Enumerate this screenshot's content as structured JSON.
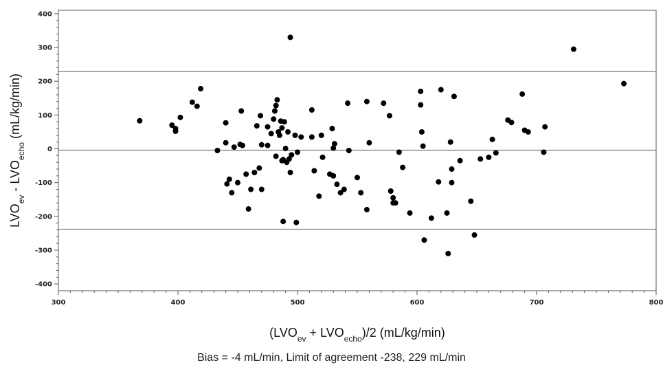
{
  "chart_data": {
    "type": "scatter",
    "title": "",
    "xlabel": {
      "parts": [
        {
          "text": "(LVO",
          "sub": false
        },
        {
          "text": "ev",
          "sub": true
        },
        {
          "text": " + LVO",
          "sub": false
        },
        {
          "text": "echo",
          "sub": true
        },
        {
          "text": ")/2 (mL/kg/min)",
          "sub": false
        }
      ]
    },
    "ylabel": {
      "parts": [
        {
          "text": "LVO",
          "sub": false
        },
        {
          "text": "ev",
          "sub": true
        },
        {
          "text": " - LVO",
          "sub": false
        },
        {
          "text": "echo",
          "sub": true
        },
        {
          "text": " (mL/kg/min)",
          "sub": false
        }
      ]
    },
    "xlim": [
      300,
      800
    ],
    "ylim": [
      -420,
      410
    ],
    "xticks": [
      300,
      400,
      500,
      600,
      700,
      800
    ],
    "yticks": [
      400,
      300,
      200,
      100,
      0,
      -100,
      -200,
      -300,
      -400
    ],
    "grid": false,
    "hlines": [
      {
        "name": "upper limit of agreement",
        "y": 229
      },
      {
        "name": "bias",
        "y": -4
      },
      {
        "name": "lower limit of agreement",
        "y": -238
      }
    ],
    "points": [
      [
        368,
        83
      ],
      [
        395,
        70
      ],
      [
        398,
        60
      ],
      [
        398,
        52
      ],
      [
        402,
        93
      ],
      [
        412,
        138
      ],
      [
        416,
        126
      ],
      [
        419,
        178
      ],
      [
        433,
        -5
      ],
      [
        440,
        18
      ],
      [
        440,
        77
      ],
      [
        441,
        -104
      ],
      [
        443,
        -90
      ],
      [
        445,
        -130
      ],
      [
        447,
        5
      ],
      [
        450,
        -100
      ],
      [
        452,
        13
      ],
      [
        454,
        10
      ],
      [
        453,
        112
      ],
      [
        457,
        -75
      ],
      [
        459,
        -178
      ],
      [
        461,
        -120
      ],
      [
        464,
        -70
      ],
      [
        466,
        68
      ],
      [
        468,
        -57
      ],
      [
        469,
        98
      ],
      [
        470,
        12
      ],
      [
        470,
        -120
      ],
      [
        475,
        65
      ],
      [
        475,
        10
      ],
      [
        478,
        45
      ],
      [
        480,
        88
      ],
      [
        481,
        112
      ],
      [
        482,
        128
      ],
      [
        482,
        -22
      ],
      [
        483,
        145
      ],
      [
        484,
        50
      ],
      [
        485,
        40
      ],
      [
        486,
        82
      ],
      [
        487,
        62
      ],
      [
        487,
        -35
      ],
      [
        488,
        -32
      ],
      [
        488,
        -215
      ],
      [
        489,
        80
      ],
      [
        490,
        1
      ],
      [
        491,
        -40
      ],
      [
        492,
        50
      ],
      [
        493,
        -30
      ],
      [
        494,
        -70
      ],
      [
        495,
        -18
      ],
      [
        494,
        330
      ],
      [
        498,
        40
      ],
      [
        499,
        -218
      ],
      [
        500,
        -10
      ],
      [
        503,
        35
      ],
      [
        512,
        115
      ],
      [
        512,
        35
      ],
      [
        514,
        -65
      ],
      [
        518,
        -140
      ],
      [
        520,
        40
      ],
      [
        521,
        -25
      ],
      [
        527,
        -75
      ],
      [
        529,
        60
      ],
      [
        530,
        -80
      ],
      [
        530,
        2
      ],
      [
        531,
        15
      ],
      [
        533,
        -105
      ],
      [
        536,
        -130
      ],
      [
        539,
        -120
      ],
      [
        542,
        135
      ],
      [
        543,
        -5
      ],
      [
        550,
        -85
      ],
      [
        553,
        -130
      ],
      [
        558,
        140
      ],
      [
        558,
        -180
      ],
      [
        560,
        18
      ],
      [
        572,
        135
      ],
      [
        577,
        98
      ],
      [
        578,
        -125
      ],
      [
        580,
        -145
      ],
      [
        580,
        -160
      ],
      [
        582,
        -160
      ],
      [
        585,
        -10
      ],
      [
        588,
        -55
      ],
      [
        594,
        -190
      ],
      [
        603,
        170
      ],
      [
        603,
        130
      ],
      [
        604,
        50
      ],
      [
        605,
        8
      ],
      [
        606,
        -270
      ],
      [
        612,
        -205
      ],
      [
        618,
        -98
      ],
      [
        620,
        175
      ],
      [
        625,
        -190
      ],
      [
        626,
        -310
      ],
      [
        628,
        20
      ],
      [
        629,
        -100
      ],
      [
        629,
        -60
      ],
      [
        631,
        155
      ],
      [
        636,
        -35
      ],
      [
        645,
        -155
      ],
      [
        648,
        -255
      ],
      [
        653,
        -30
      ],
      [
        660,
        -25
      ],
      [
        663,
        28
      ],
      [
        666,
        -12
      ],
      [
        676,
        85
      ],
      [
        679,
        78
      ],
      [
        688,
        162
      ],
      [
        690,
        55
      ],
      [
        693,
        50
      ],
      [
        706,
        -10
      ],
      [
        707,
        65
      ],
      [
        731,
        295
      ],
      [
        773,
        193
      ]
    ]
  },
  "caption": "Bias = -4 mL/min, Limit of agreement  -238, 229 mL/min"
}
